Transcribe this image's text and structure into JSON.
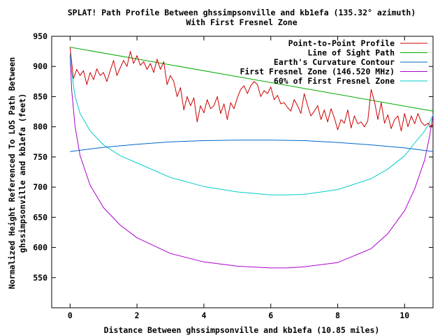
{
  "chart_data": {
    "type": "line",
    "title": "SPLAT! Path Profile Between ghssimpsonville and kb1efa (135.32° azimuth)",
    "subtitle": "With First Fresnel Zone",
    "xlabel": "Distance Between ghssimpsonville and kb1efa (10.85 miles)",
    "ylabel_line1": "Normalized Height Referenced To LOS Path Between",
    "ylabel_line2": "ghssimpsonville and kb1efa (feet)",
    "xlim": [
      -0.55,
      10.85
    ],
    "ylim": [
      500,
      950
    ],
    "xticks": [
      0,
      2,
      4,
      6,
      8,
      10
    ],
    "yticks": [
      550,
      600,
      650,
      700,
      750,
      800,
      850,
      900,
      950
    ],
    "grid": false,
    "legend_position": "top-right",
    "series": [
      {
        "name": "Point-to-Point Profile",
        "color": "#cc0000",
        "x": [
          0.0,
          0.1,
          0.2,
          0.3,
          0.4,
          0.5,
          0.6,
          0.7,
          0.8,
          0.9,
          1.0,
          1.1,
          1.2,
          1.3,
          1.4,
          1.5,
          1.6,
          1.7,
          1.8,
          1.9,
          2.0,
          2.1,
          2.2,
          2.3,
          2.4,
          2.5,
          2.6,
          2.7,
          2.8,
          2.9,
          3.0,
          3.1,
          3.2,
          3.3,
          3.4,
          3.5,
          3.6,
          3.7,
          3.8,
          3.9,
          4.0,
          4.1,
          4.2,
          4.3,
          4.4,
          4.5,
          4.6,
          4.7,
          4.8,
          4.9,
          5.0,
          5.1,
          5.2,
          5.3,
          5.4,
          5.5,
          5.6,
          5.7,
          5.8,
          5.9,
          6.0,
          6.1,
          6.2,
          6.3,
          6.4,
          6.5,
          6.6,
          6.7,
          6.8,
          6.9,
          7.0,
          7.1,
          7.2,
          7.3,
          7.4,
          7.5,
          7.6,
          7.7,
          7.8,
          7.9,
          8.0,
          8.1,
          8.2,
          8.3,
          8.4,
          8.5,
          8.6,
          8.7,
          8.8,
          8.9,
          9.0,
          9.1,
          9.2,
          9.3,
          9.4,
          9.5,
          9.6,
          9.7,
          9.8,
          9.9,
          10.0,
          10.1,
          10.2,
          10.3,
          10.4,
          10.5,
          10.6,
          10.7,
          10.8,
          10.85
        ],
        "y": [
          932,
          880,
          895,
          885,
          893,
          870,
          890,
          878,
          896,
          885,
          890,
          875,
          893,
          910,
          885,
          898,
          910,
          900,
          925,
          905,
          918,
          902,
          908,
          895,
          905,
          890,
          912,
          895,
          908,
          870,
          885,
          875,
          850,
          865,
          828,
          850,
          835,
          848,
          808,
          835,
          823,
          845,
          830,
          835,
          850,
          822,
          838,
          812,
          840,
          830,
          848,
          862,
          868,
          855,
          868,
          875,
          870,
          850,
          860,
          855,
          866,
          845,
          852,
          838,
          840,
          832,
          826,
          845,
          835,
          822,
          855,
          835,
          818,
          826,
          835,
          812,
          828,
          808,
          830,
          815,
          795,
          812,
          806,
          828,
          798,
          818,
          805,
          808,
          800,
          810,
          862,
          842,
          812,
          840,
          806,
          820,
          797,
          812,
          818,
          793,
          822,
          800,
          818,
          805,
          822,
          808,
          802,
          806,
          800,
          805
        ]
      },
      {
        "name": "Line of Sight Path",
        "color": "#00aa00",
        "x": [
          0,
          10.85
        ],
        "y": [
          932,
          826
        ]
      },
      {
        "name": "Earth's Curvature Contour",
        "color": "#0066cc",
        "x": [
          0,
          1,
          2,
          3,
          4,
          5,
          6,
          7,
          8,
          9,
          10,
          10.85
        ],
        "y": [
          759,
          766,
          771,
          775,
          777,
          778,
          778,
          777,
          774,
          770,
          765,
          759
        ]
      },
      {
        "name": "First Fresnel Zone (146.520 MHz)",
        "color": "#aa00cc",
        "x": [
          0,
          0.05,
          0.15,
          0.3,
          0.6,
          1,
          1.5,
          2,
          3,
          4,
          5,
          6,
          6.5,
          7,
          8,
          9,
          9.5,
          10,
          10.3,
          10.6,
          10.75,
          10.85
        ],
        "y": [
          918,
          860,
          800,
          752,
          703,
          666,
          637,
          616,
          590,
          576,
          569,
          566,
          566,
          568,
          575,
          598,
          623,
          661,
          697,
          745,
          785,
          820
        ]
      },
      {
        "name": "60% of First Fresnel Zone",
        "color": "#00cccc",
        "x": [
          0,
          0.05,
          0.15,
          0.3,
          0.6,
          1,
          1.5,
          2,
          3,
          4,
          5,
          6,
          6.5,
          7,
          8,
          9,
          9.5,
          10,
          10.3,
          10.6,
          10.75,
          10.85
        ],
        "y": [
          922,
          890,
          850,
          822,
          793,
          770,
          752,
          740,
          716,
          701,
          692,
          687,
          687,
          688,
          696,
          714,
          730,
          752,
          773,
          793,
          808,
          820
        ]
      }
    ]
  }
}
